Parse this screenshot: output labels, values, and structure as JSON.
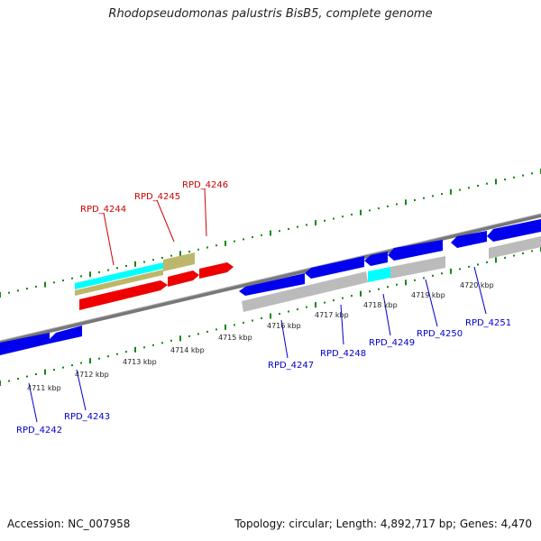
{
  "title": "Rhodopseudomonas palustris BisB5, complete genome",
  "footer": {
    "accession": "Accession: NC_007958",
    "stats": "Topology: circular; Length: 4,892,717 bp; Genes: 4,470"
  },
  "scale": {
    "ticks": [
      {
        "label": "4711 kbp"
      },
      {
        "label": "4712 kbp"
      },
      {
        "label": "4713 kbp"
      },
      {
        "label": "4714 kbp"
      },
      {
        "label": "4715 kbp"
      },
      {
        "label": "4716 kbp"
      },
      {
        "label": "4717 kbp"
      },
      {
        "label": "4718 kbp"
      },
      {
        "label": "4719 kbp"
      },
      {
        "label": "4720 kbp"
      }
    ]
  },
  "genes": {
    "forward": [
      "RPD_4244",
      "RPD_4245",
      "RPD_4246"
    ],
    "reverse": [
      "RPD_4242",
      "RPD_4243",
      "RPD_4247",
      "RPD_4248",
      "RPD_4249",
      "RPD_4250",
      "RPD_4251"
    ]
  },
  "colors": {
    "forward_label": "#cc0000",
    "reverse_label": "#0000cc",
    "cds_blue": "#0000ee",
    "cds_red": "#ee0000",
    "cds_khaki": "#bdb76b",
    "cds_cyan": "#00ffff",
    "cds_gray": "#bbbbbb",
    "ticks": "#118811",
    "backbone": "#777777"
  }
}
